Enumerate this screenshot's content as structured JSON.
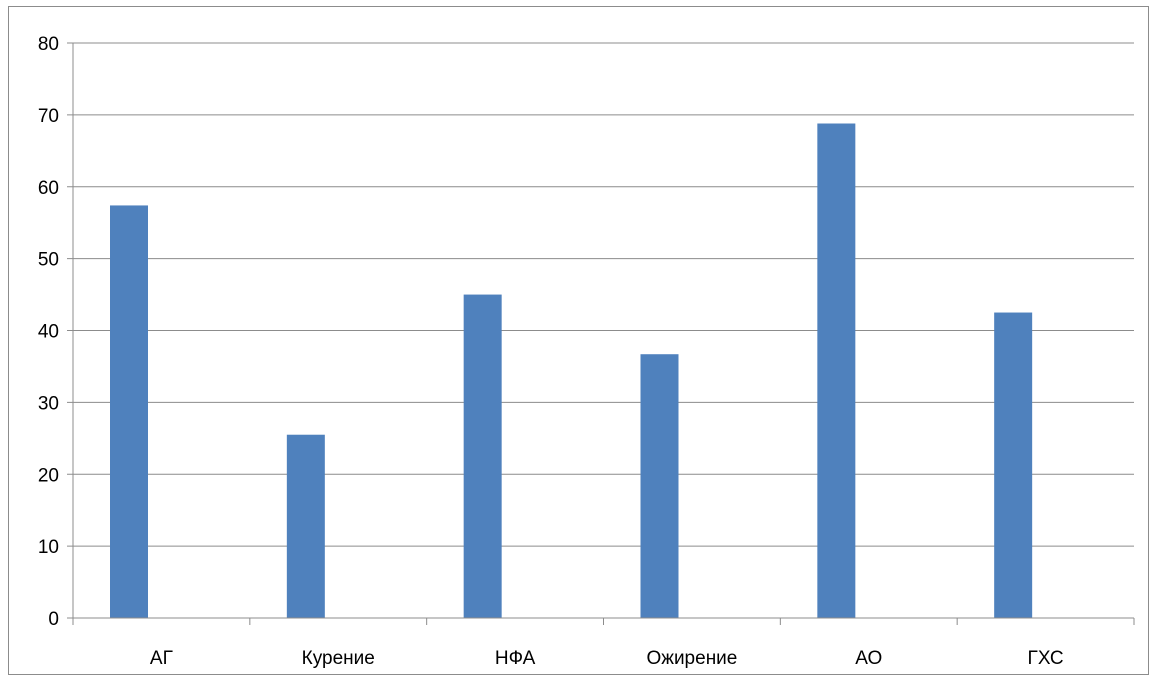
{
  "chart_data": {
    "type": "bar",
    "categories": [
      "АГ",
      "Курение",
      "НФА",
      "Ожирение",
      "АО",
      "ГХС"
    ],
    "values": [
      57.4,
      25.5,
      45.0,
      36.7,
      68.8,
      42.5
    ],
    "ylim": [
      0,
      80
    ],
    "yticks": [
      "0",
      "10",
      "20",
      "30",
      "40",
      "50",
      "60",
      "70",
      "80"
    ],
    "grid": true,
    "legend": "none",
    "colors": {
      "bar": "#4f81bd",
      "grid": "#8c8c8c",
      "axis": "#8c8c8c"
    }
  }
}
